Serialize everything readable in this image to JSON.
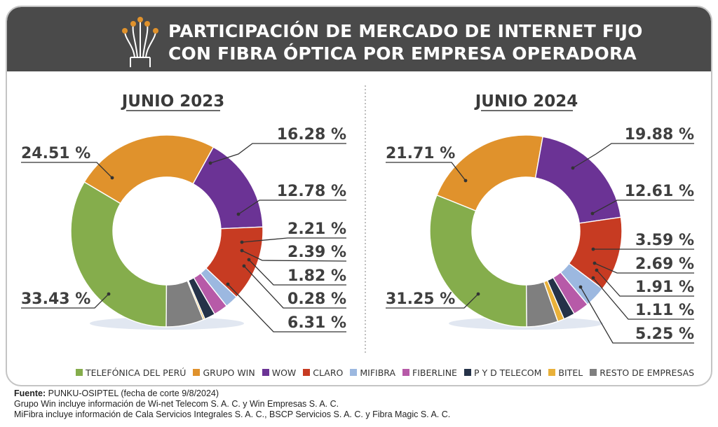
{
  "title": {
    "line1": "PARTICIPACIÓN DE MERCADO DE INTERNET FIJO",
    "line2": "CON FIBRA ÓPTICA POR EMPRESA OPERADORA"
  },
  "icons": {
    "header": "fiber-optic-icon"
  },
  "colors": {
    "header_bg": "#4a4a4a",
    "TELEFÓNICA DEL PERÚ": "#85ad4c",
    "GRUPO WIN": "#e0922c",
    "WOW": "#6b3395",
    "CLARO": "#c73b22",
    "MIFIBRA": "#9cb8e0",
    "FIBERLINE": "#b75aa8",
    "P Y D TELECOM": "#253248",
    "BITEL": "#e9b13a",
    "RESTO DE EMPRESAS": "#7f7f7f"
  },
  "chart_data": [
    {
      "type": "pie",
      "donut": true,
      "title": "JUNIO 2023",
      "categories": [
        "TELEFÓNICA DEL PERÚ",
        "GRUPO WIN",
        "WOW",
        "CLARO",
        "MIFIBRA",
        "FIBERLINE",
        "P Y D TELECOM",
        "BITEL",
        "RESTO DE EMPRESAS"
      ],
      "values": [
        33.43,
        24.51,
        16.28,
        12.78,
        2.21,
        2.39,
        1.82,
        0.28,
        6.31
      ],
      "data_labels": [
        "33.43 %",
        "24.51 %",
        "16.28 %",
        "12.78 %",
        "2.21 %",
        "2.39 %",
        "1.82 %",
        "0.28 %",
        "6.31 %"
      ],
      "legend_position": "bottom"
    },
    {
      "type": "pie",
      "donut": true,
      "title": "JUNIO 2024",
      "categories": [
        "TELEFÓNICA DEL PERÚ",
        "GRUPO WIN",
        "WOW",
        "CLARO",
        "MIFIBRA",
        "FIBERLINE",
        "P Y D TELECOM",
        "BITEL",
        "RESTO DE EMPRESAS"
      ],
      "values": [
        31.25,
        21.71,
        19.88,
        12.61,
        3.59,
        2.69,
        1.91,
        1.11,
        5.25
      ],
      "data_labels": [
        "31.25 %",
        "21.71 %",
        "19.88 %",
        "12.61 %",
        "3.59 %",
        "2.69 %",
        "1.91 %",
        "1.11 %",
        "5.25 %"
      ],
      "legend_position": "bottom"
    }
  ],
  "legend": [
    "TELEFÓNICA DEL PERÚ",
    "GRUPO WIN",
    "WOW",
    "CLARO",
    "MIFIBRA",
    "FIBERLINE",
    "P Y D TELECOM",
    "BITEL",
    "RESTO DE EMPRESAS"
  ],
  "footer": {
    "source_label": "Fuente:",
    "source_text": " PUNKU-OSIPTEL (fecha de corte 9/8/2024)",
    "note1": "Grupo Win incluye información de Wi-net Telecom S. A. C. y Win Empresas S. A. C.",
    "note2": "MiFibra incluye información de Cala Servicios Integrales S. A. C., BSCP Servicios S. A. C. y Fibra Magic S. A. C."
  }
}
